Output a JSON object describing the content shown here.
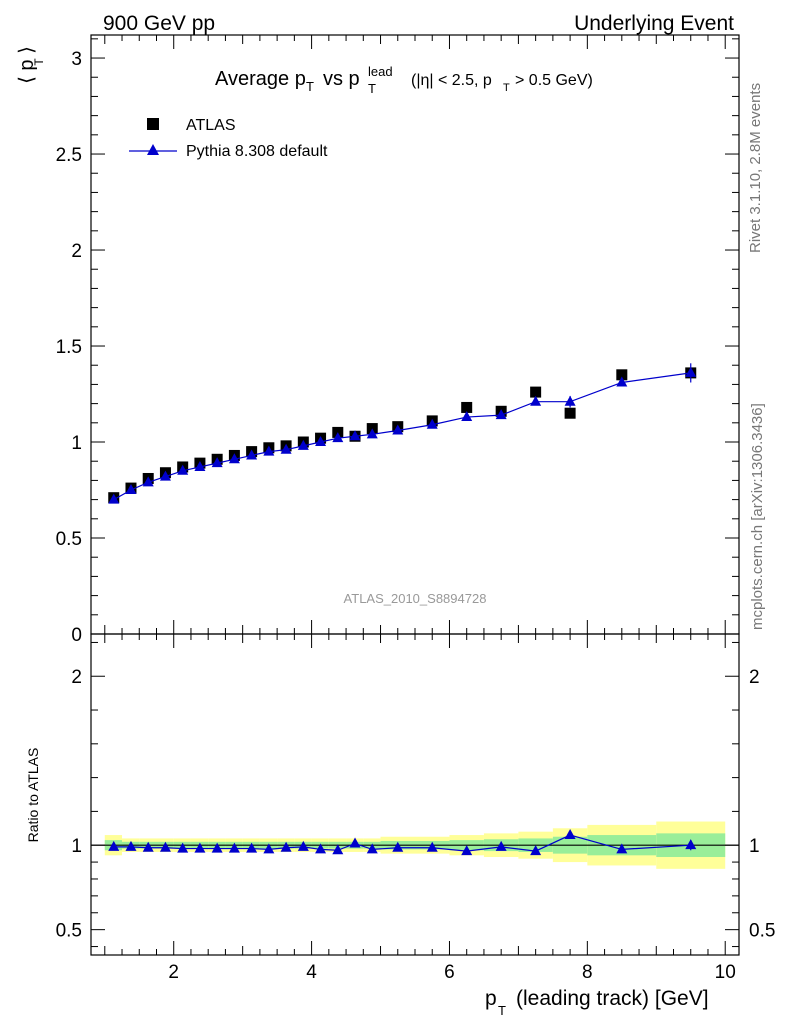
{
  "header": {
    "left": "900 GeV pp",
    "right": "Underlying Event"
  },
  "side_texts": {
    "rivet": "Rivet 3.1.10,  2.8M events",
    "mcplots": "mcplots.cern.ch [arXiv:1306.3436]"
  },
  "chart_data": [
    {
      "type": "scatter",
      "title": "Average p_T vs p_T^lead (|η| < 2.5, p_T > 0.5 GeV)",
      "analysis_label": "ATLAS_2010_S8894728",
      "ylabel": "⟨ p_T ⟩",
      "xlabel": "p_T (leading track) [GeV]",
      "xlim": [
        0.8,
        10.2
      ],
      "ylim": [
        0,
        3.12
      ],
      "yticks": [
        0.5,
        1,
        1.5,
        2,
        2.5,
        3
      ],
      "xticks": [
        2,
        4,
        6,
        8,
        10
      ],
      "legend_position": "top-left",
      "series": [
        {
          "name": "ATLAS",
          "marker": "square",
          "color": "#000000",
          "x": [
            1.13,
            1.38,
            1.63,
            1.88,
            2.13,
            2.38,
            2.63,
            2.88,
            3.13,
            3.38,
            3.63,
            3.88,
            4.13,
            4.38,
            4.63,
            4.88,
            5.25,
            5.75,
            6.25,
            6.75,
            7.25,
            7.75,
            8.5,
            9.5
          ],
          "values": [
            0.71,
            0.76,
            0.81,
            0.84,
            0.87,
            0.89,
            0.91,
            0.93,
            0.95,
            0.97,
            0.98,
            1.0,
            1.02,
            1.05,
            1.03,
            1.07,
            1.08,
            1.11,
            1.18,
            1.16,
            1.26,
            1.15,
            1.35,
            1.36
          ]
        },
        {
          "name": "Pythia 8.308 default",
          "marker": "triangle",
          "color": "#0000cc",
          "x": [
            1.13,
            1.38,
            1.63,
            1.88,
            2.13,
            2.38,
            2.63,
            2.88,
            3.13,
            3.38,
            3.63,
            3.88,
            4.13,
            4.38,
            4.63,
            4.88,
            5.25,
            5.75,
            6.25,
            6.75,
            7.25,
            7.75,
            8.5,
            9.5
          ],
          "values": [
            0.7,
            0.75,
            0.79,
            0.82,
            0.85,
            0.87,
            0.89,
            0.91,
            0.93,
            0.95,
            0.96,
            0.98,
            1.0,
            1.02,
            1.03,
            1.04,
            1.06,
            1.09,
            1.13,
            1.14,
            1.21,
            1.21,
            1.31,
            1.36
          ],
          "errors": [
            0,
            0,
            0,
            0,
            0,
            0,
            0,
            0,
            0,
            0,
            0,
            0,
            0,
            0,
            0,
            0,
            0,
            0,
            0,
            0,
            0,
            0.03,
            0,
            0.05
          ]
        }
      ]
    },
    {
      "type": "scatter",
      "ylabel": "Ratio to ATLAS",
      "xlabel": "p_T (leading track) [GeV]",
      "xlim": [
        0.8,
        10.2
      ],
      "ylim": [
        0.35,
        2.25
      ],
      "yticks": [
        0.5,
        1,
        2
      ],
      "xticks": [
        2,
        4,
        6,
        8,
        10
      ],
      "bands": {
        "x_edges": [
          1.0,
          1.25,
          1.5,
          1.75,
          2.0,
          2.25,
          2.5,
          2.75,
          3.0,
          3.25,
          3.5,
          3.75,
          4.0,
          4.25,
          4.5,
          4.75,
          5.0,
          5.5,
          6.0,
          6.5,
          7.0,
          7.5,
          8.0,
          9.0,
          10.0
        ],
        "yellow_halfwidth": [
          0.06,
          0.04,
          0.04,
          0.04,
          0.04,
          0.04,
          0.04,
          0.04,
          0.04,
          0.04,
          0.04,
          0.04,
          0.04,
          0.04,
          0.04,
          0.04,
          0.05,
          0.05,
          0.06,
          0.07,
          0.08,
          0.1,
          0.12,
          0.14
        ],
        "green_halfwidth": [
          0.03,
          0.02,
          0.02,
          0.02,
          0.02,
          0.02,
          0.02,
          0.02,
          0.02,
          0.02,
          0.02,
          0.02,
          0.02,
          0.02,
          0.02,
          0.02,
          0.025,
          0.025,
          0.03,
          0.035,
          0.04,
          0.05,
          0.06,
          0.07
        ],
        "yellow_color": "#ffff99",
        "green_color": "#99ee99"
      },
      "series": [
        {
          "name": "Pythia 8.308 default",
          "marker": "triangle",
          "color": "#0000cc",
          "x": [
            1.13,
            1.38,
            1.63,
            1.88,
            2.13,
            2.38,
            2.63,
            2.88,
            3.13,
            3.38,
            3.63,
            3.88,
            4.13,
            4.38,
            4.63,
            4.88,
            5.25,
            5.75,
            6.25,
            6.75,
            7.25,
            7.75,
            8.5,
            9.5
          ],
          "values": [
            0.99,
            0.99,
            0.985,
            0.985,
            0.98,
            0.98,
            0.98,
            0.98,
            0.98,
            0.975,
            0.985,
            0.99,
            0.975,
            0.97,
            1.01,
            0.975,
            0.985,
            0.985,
            0.965,
            0.99,
            0.965,
            1.06,
            0.975,
            1.0
          ],
          "errors": [
            0,
            0,
            0,
            0,
            0,
            0,
            0,
            0,
            0,
            0,
            0,
            0,
            0,
            0,
            0,
            0,
            0,
            0,
            0,
            0,
            0,
            0,
            0,
            0.03
          ]
        }
      ]
    }
  ]
}
